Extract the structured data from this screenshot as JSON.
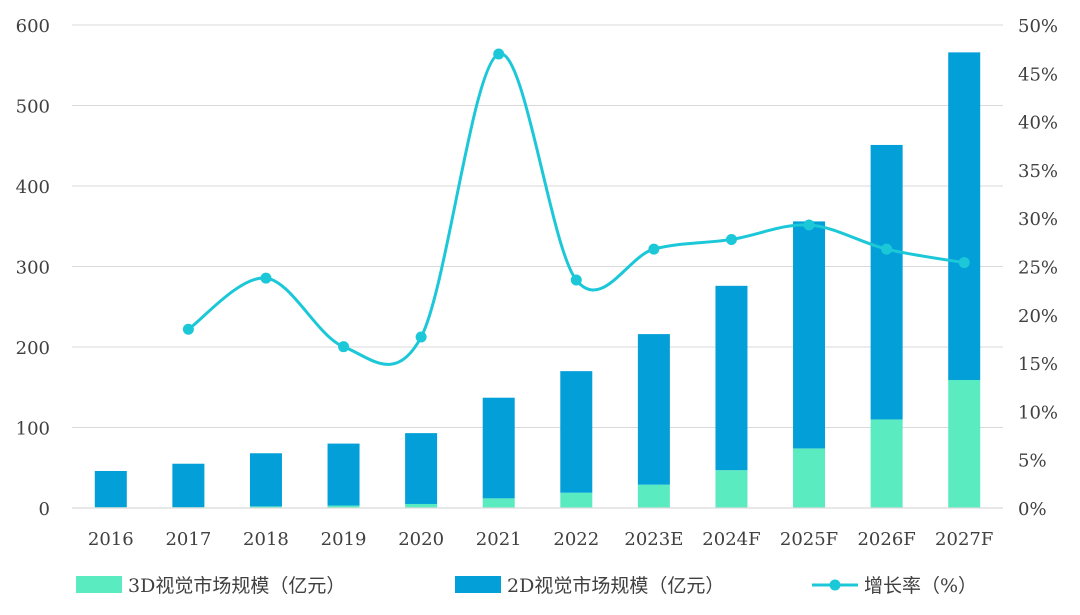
{
  "chart_data": {
    "type": "bar",
    "stacked": true,
    "categories": [
      "2016",
      "2017",
      "2018",
      "2019",
      "2020",
      "2021",
      "2022",
      "2023E",
      "2024F",
      "2025F",
      "2026F",
      "2027F"
    ],
    "series": [
      {
        "name": "3D视觉市场规模（亿元）",
        "kind": "bar",
        "axis": "left",
        "color": "#5BEBC0",
        "values": [
          1,
          1,
          2,
          3,
          5,
          12,
          19,
          29,
          47,
          74,
          110,
          159
        ]
      },
      {
        "name": "2D视觉市场规模（亿元）",
        "kind": "bar",
        "axis": "left",
        "color": "#029FD8",
        "values": [
          45,
          54,
          66,
          77,
          88,
          125,
          151,
          187,
          229,
          282,
          341,
          407
        ]
      },
      {
        "name": "增长率（%）",
        "kind": "line",
        "axis": "right",
        "color": "#1CC8D8",
        "values": [
          null,
          18.5,
          23.8,
          16.7,
          17.7,
          47.0,
          23.6,
          26.8,
          27.8,
          29.3,
          26.8,
          25.4
        ]
      }
    ],
    "y_left": {
      "min": 0,
      "max": 600,
      "ticks": [
        0,
        100,
        200,
        300,
        400,
        500,
        600
      ],
      "tick_labels": [
        "0",
        "100",
        "200",
        "300",
        "400",
        "500",
        "600"
      ]
    },
    "y_right": {
      "min": 0,
      "max": 50,
      "ticks": [
        0,
        5,
        10,
        15,
        20,
        25,
        30,
        35,
        40,
        45,
        50
      ],
      "tick_labels": [
        "0%",
        "5%",
        "10%",
        "15%",
        "20%",
        "25%",
        "30%",
        "35%",
        "40%",
        "45%",
        "50%"
      ]
    },
    "grid": true,
    "legend_position": "bottom",
    "colors": {
      "grid": "#D9D9D9",
      "text": "#404040"
    }
  }
}
